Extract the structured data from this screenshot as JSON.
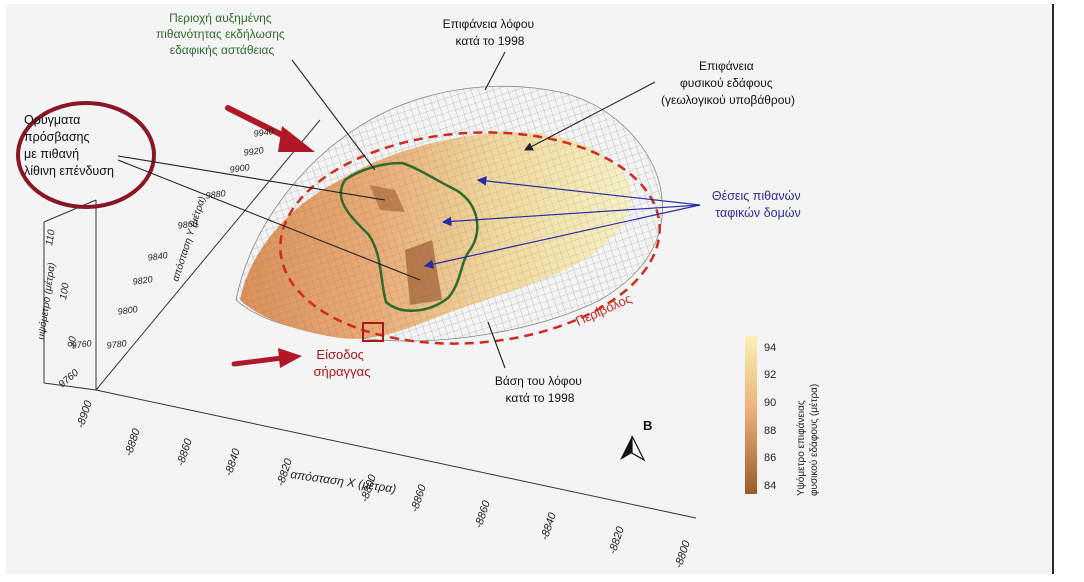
{
  "annotations": {
    "instability_zone": [
      "Περιοχή αυξημένης",
      "πιθανότητας εκδήλωσης",
      "εδαφικής αστάθειας"
    ],
    "hill_surface_1998": [
      "Επιφάνεια λόφου",
      "κατά το 1998"
    ],
    "bedrock_surface": [
      "Επιφάνεια",
      "φυσικού εδάφους",
      "(γεωλογικού υποβάθρου)"
    ],
    "access_trenches": [
      "Ορύγματα",
      "πρόσβασης",
      "με πιθανή",
      "λίθινη επένδυση"
    ],
    "tomb_positions": [
      "Θέσεις πιθανών",
      "ταφικών δομών"
    ],
    "enclosure": "Περίβολος",
    "tunnel_entrance": [
      "Είσοδος",
      "σήραγγας"
    ],
    "hill_base_1998": [
      "Βάση του λόφου",
      "κατά το 1998"
    ],
    "north": "Β"
  },
  "axes": {
    "x": {
      "label": "απόσταση Χ (μέτρα)",
      "ticks": [
        "-8900",
        "-8880",
        "-8860",
        "-8840",
        "-8820",
        "-8800",
        "-8860",
        "-8860",
        "-8840",
        "-8820",
        "-8800"
      ]
    },
    "y": {
      "label": "απόσταση Υ (μέτρα)",
      "ticks": [
        "9760",
        "9780",
        "9800",
        "9820",
        "9840",
        "9860",
        "9880",
        "9900",
        "9920",
        "9940"
      ]
    },
    "z": {
      "label": "υψόμετρο (μέτρα)",
      "ticks": [
        "9760",
        "90",
        "100",
        "110"
      ]
    }
  },
  "colorbar": {
    "label": [
      "Υψόμετρο επιφάνειας",
      "φυσικού εδάφους (μέτρα)"
    ],
    "ticks": [
      "94",
      "92",
      "90",
      "88",
      "86",
      "84"
    ],
    "color_top": "#f8f1b6",
    "color_bottom": "#9c5a28"
  },
  "colors": {
    "annotation_green": "#2f6b2c",
    "annotation_red": "#b01818",
    "annotation_blue": "#2c2ca8",
    "dark_red_circle": "#8a1622",
    "enclosure_red": "#d32a20"
  }
}
